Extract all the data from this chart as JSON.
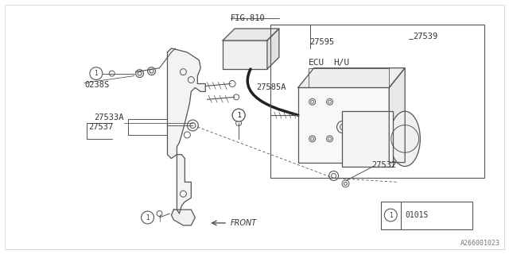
{
  "bg_color": "#ffffff",
  "border_color": "#bbbbbb",
  "line_color": "#555555",
  "dark_line": "#222222",
  "text_color": "#333333",
  "fig_id": "A266001023",
  "legend_code": "0101S",
  "figsize": [
    6.4,
    3.2
  ],
  "dpi": 100,
  "labels": {
    "FIG810": "FIG.810",
    "27595": "27595",
    "27585A": "27585A",
    "27539": "27539",
    "27537": "27537",
    "27533A": "27533A",
    "27532": "27532",
    "0238S": "0238S",
    "ECU": "ECU",
    "HU": "H/U",
    "FRONT": "FRONT"
  }
}
